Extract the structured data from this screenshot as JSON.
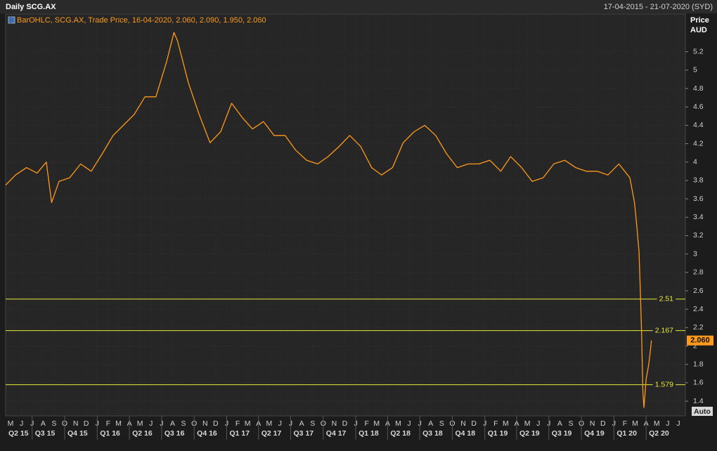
{
  "chart_data": {
    "type": "line",
    "title": "Daily SCG.AX",
    "date_range": "17-04-2015 - 21-07-2020 (SYD)",
    "y_axis_label": "Price",
    "y_axis_unit": "AUD",
    "auto_button": "Auto",
    "xlim": [
      "2015-04-17",
      "2020-07-21"
    ],
    "ylim": [
      1.24,
      5.61
    ],
    "yticks": [
      1.4,
      1.6,
      1.8,
      2,
      2.2,
      2.4,
      2.6,
      2.8,
      3,
      3.2,
      3.4,
      3.6,
      3.8,
      4,
      4.2,
      4.4,
      4.6,
      4.8,
      5,
      5.2
    ],
    "grid": true,
    "xticks": [
      {
        "value": "2015-05-01",
        "label": "M"
      },
      {
        "value": "2015-06-01",
        "label": "J"
      },
      {
        "value": "2015-07-01",
        "label": "J"
      },
      {
        "value": "2015-08-01",
        "label": "A"
      },
      {
        "value": "2015-09-01",
        "label": "S"
      },
      {
        "value": "2015-10-01",
        "label": "O"
      },
      {
        "value": "2015-11-01",
        "label": "N"
      },
      {
        "value": "2015-12-01",
        "label": "D"
      },
      {
        "value": "2016-01-01",
        "label": "J"
      },
      {
        "value": "2016-02-01",
        "label": "F"
      },
      {
        "value": "2016-03-01",
        "label": "M"
      },
      {
        "value": "2016-04-01",
        "label": "A"
      },
      {
        "value": "2016-05-01",
        "label": "M"
      },
      {
        "value": "2016-06-01",
        "label": "J"
      },
      {
        "value": "2016-07-01",
        "label": "J"
      },
      {
        "value": "2016-08-01",
        "label": "A"
      },
      {
        "value": "2016-09-01",
        "label": "S"
      },
      {
        "value": "2016-10-01",
        "label": "O"
      },
      {
        "value": "2016-11-01",
        "label": "N"
      },
      {
        "value": "2016-12-01",
        "label": "D"
      },
      {
        "value": "2017-01-01",
        "label": "J"
      },
      {
        "value": "2017-02-01",
        "label": "F"
      },
      {
        "value": "2017-03-01",
        "label": "M"
      },
      {
        "value": "2017-04-01",
        "label": "A"
      },
      {
        "value": "2017-05-01",
        "label": "M"
      },
      {
        "value": "2017-06-01",
        "label": "J"
      },
      {
        "value": "2017-07-01",
        "label": "J"
      },
      {
        "value": "2017-08-01",
        "label": "A"
      },
      {
        "value": "2017-09-01",
        "label": "S"
      },
      {
        "value": "2017-10-01",
        "label": "O"
      },
      {
        "value": "2017-11-01",
        "label": "N"
      },
      {
        "value": "2017-12-01",
        "label": "D"
      },
      {
        "value": "2018-01-01",
        "label": "J"
      },
      {
        "value": "2018-02-01",
        "label": "F"
      },
      {
        "value": "2018-03-01",
        "label": "M"
      },
      {
        "value": "2018-04-01",
        "label": "A"
      },
      {
        "value": "2018-05-01",
        "label": "M"
      },
      {
        "value": "2018-06-01",
        "label": "J"
      },
      {
        "value": "2018-07-01",
        "label": "J"
      },
      {
        "value": "2018-08-01",
        "label": "A"
      },
      {
        "value": "2018-09-01",
        "label": "S"
      },
      {
        "value": "2018-10-01",
        "label": "O"
      },
      {
        "value": "2018-11-01",
        "label": "N"
      },
      {
        "value": "2018-12-01",
        "label": "D"
      },
      {
        "value": "2019-01-01",
        "label": "J"
      },
      {
        "value": "2019-02-01",
        "label": "F"
      },
      {
        "value": "2019-03-01",
        "label": "M"
      },
      {
        "value": "2019-04-01",
        "label": "A"
      },
      {
        "value": "2019-05-01",
        "label": "M"
      },
      {
        "value": "2019-06-01",
        "label": "J"
      },
      {
        "value": "2019-07-01",
        "label": "J"
      },
      {
        "value": "2019-08-01",
        "label": "A"
      },
      {
        "value": "2019-09-01",
        "label": "S"
      },
      {
        "value": "2019-10-01",
        "label": "O"
      },
      {
        "value": "2019-11-01",
        "label": "N"
      },
      {
        "value": "2019-12-01",
        "label": "D"
      },
      {
        "value": "2020-01-01",
        "label": "J"
      },
      {
        "value": "2020-02-01",
        "label": "F"
      },
      {
        "value": "2020-03-01",
        "label": "M"
      },
      {
        "value": "2020-04-01",
        "label": "A"
      },
      {
        "value": "2020-05-01",
        "label": "M"
      },
      {
        "value": "2020-06-01",
        "label": "J"
      },
      {
        "value": "2020-07-01",
        "label": "J"
      }
    ],
    "quarter_ticks": [
      {
        "value": "2015-04-01",
        "label": "Q2 15"
      },
      {
        "value": "2015-07-01",
        "label": "Q3 15"
      },
      {
        "value": "2015-10-01",
        "label": "Q4 15"
      },
      {
        "value": "2016-01-01",
        "label": "Q1 16"
      },
      {
        "value": "2016-04-01",
        "label": "Q2 16"
      },
      {
        "value": "2016-07-01",
        "label": "Q3 16"
      },
      {
        "value": "2016-10-01",
        "label": "Q4 16"
      },
      {
        "value": "2017-01-01",
        "label": "Q1 17"
      },
      {
        "value": "2017-04-01",
        "label": "Q2 17"
      },
      {
        "value": "2017-07-01",
        "label": "Q3 17"
      },
      {
        "value": "2017-10-01",
        "label": "Q4 17"
      },
      {
        "value": "2018-01-01",
        "label": "Q1 18"
      },
      {
        "value": "2018-04-01",
        "label": "Q2 18"
      },
      {
        "value": "2018-07-01",
        "label": "Q3 18"
      },
      {
        "value": "2018-10-01",
        "label": "Q4 18"
      },
      {
        "value": "2019-01-01",
        "label": "Q1 19"
      },
      {
        "value": "2019-04-01",
        "label": "Q2 19"
      },
      {
        "value": "2019-07-01",
        "label": "Q3 19"
      },
      {
        "value": "2019-10-01",
        "label": "Q4 19"
      },
      {
        "value": "2020-01-01",
        "label": "Q1 20"
      },
      {
        "value": "2020-04-01",
        "label": "Q2 20"
      }
    ],
    "x": [
      "2015-04-17",
      "2015-05-15",
      "2015-06-15",
      "2015-07-15",
      "2015-08-10",
      "2015-08-25",
      "2015-09-15",
      "2015-10-15",
      "2015-11-15",
      "2015-12-15",
      "2016-01-15",
      "2016-02-15",
      "2016-03-15",
      "2016-04-15",
      "2016-05-15",
      "2016-06-15",
      "2016-07-15",
      "2016-08-05",
      "2016-08-15",
      "2016-09-15",
      "2016-10-15",
      "2016-11-15",
      "2016-12-15",
      "2017-01-15",
      "2017-02-15",
      "2017-03-15",
      "2017-04-15",
      "2017-05-15",
      "2017-06-15",
      "2017-07-15",
      "2017-08-15",
      "2017-09-15",
      "2017-10-15",
      "2017-11-15",
      "2017-12-15",
      "2018-01-15",
      "2018-02-15",
      "2018-03-15",
      "2018-04-15",
      "2018-05-15",
      "2018-06-15",
      "2018-07-15",
      "2018-08-15",
      "2018-09-15",
      "2018-10-15",
      "2018-11-15",
      "2018-12-15",
      "2019-01-15",
      "2019-02-15",
      "2019-03-15",
      "2019-04-15",
      "2019-05-15",
      "2019-06-15",
      "2019-07-15",
      "2019-08-15",
      "2019-09-15",
      "2019-10-15",
      "2019-11-15",
      "2019-12-15",
      "2020-01-15",
      "2020-02-15",
      "2020-02-28",
      "2020-03-05",
      "2020-03-12",
      "2020-03-16",
      "2020-03-19",
      "2020-03-23",
      "2020-03-26",
      "2020-04-01",
      "2020-04-08",
      "2020-04-14",
      "2020-04-16"
    ],
    "series": [
      {
        "name": "BarOHLC, SCG.AX, Trade Price, 16-04-2020, 2.060, 2.090, 1.950, 2.060",
        "color": "#ff9a1a",
        "values": [
          3.75,
          3.86,
          3.94,
          3.88,
          4.0,
          3.56,
          3.79,
          3.83,
          3.98,
          3.9,
          4.09,
          4.29,
          4.4,
          4.52,
          4.71,
          4.71,
          5.09,
          5.41,
          5.32,
          4.86,
          4.52,
          4.21,
          4.33,
          4.64,
          4.48,
          4.36,
          4.44,
          4.29,
          4.29,
          4.13,
          4.02,
          3.98,
          4.06,
          4.17,
          4.29,
          4.17,
          3.94,
          3.86,
          3.94,
          4.21,
          4.33,
          4.4,
          4.29,
          4.09,
          3.94,
          3.98,
          3.98,
          4.02,
          3.9,
          4.06,
          3.94,
          3.79,
          3.83,
          3.98,
          4.02,
          3.94,
          3.9,
          3.9,
          3.86,
          3.98,
          3.83,
          3.56,
          3.33,
          3.02,
          2.56,
          2.18,
          1.49,
          1.33,
          1.64,
          1.79,
          1.98,
          2.06
        ]
      }
    ],
    "hlines": [
      2.51,
      2.167,
      1.579
    ],
    "hline_color": "#e8e83a",
    "last_price": {
      "value": 2.06,
      "label": "2.060"
    }
  }
}
